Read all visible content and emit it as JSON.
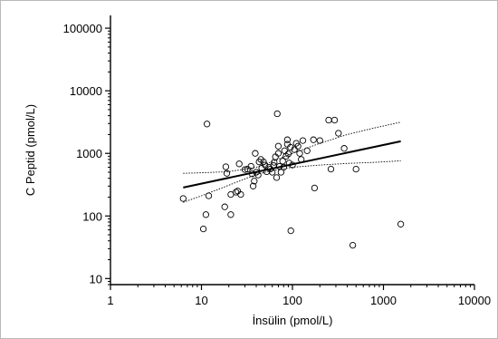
{
  "chart_data": {
    "type": "scatter",
    "x_scale": "log",
    "y_scale": "log",
    "xlabel": "İnsülin (pmol/L)",
    "ylabel": "C Peptid (pmol/L)",
    "xlim": [
      1,
      10000
    ],
    "ylim": [
      8,
      160000
    ],
    "x_ticks": [
      1,
      10,
      100,
      1000,
      10000
    ],
    "x_tick_labels": [
      "1",
      "10",
      "100",
      "1000",
      "10000"
    ],
    "y_ticks": [
      10,
      100,
      1000,
      10000,
      100000
    ],
    "y_tick_labels": [
      "10",
      "100",
      "1000",
      "10000",
      "100000"
    ],
    "grid": false,
    "legend": "none",
    "series": [
      {
        "values": [
          [
            6.3,
            190
          ],
          [
            10.5,
            62
          ],
          [
            11.2,
            105
          ],
          [
            12,
            210
          ],
          [
            11.5,
            2950
          ],
          [
            18,
            140
          ],
          [
            18.5,
            610
          ],
          [
            19,
            480
          ],
          [
            21,
            105
          ],
          [
            21,
            220
          ],
          [
            24,
            240
          ],
          [
            25,
            250
          ],
          [
            26,
            680
          ],
          [
            27,
            220
          ],
          [
            30,
            550
          ],
          [
            32,
            560
          ],
          [
            35,
            620
          ],
          [
            36,
            470
          ],
          [
            37,
            300
          ],
          [
            38,
            360
          ],
          [
            39,
            1000
          ],
          [
            40,
            500
          ],
          [
            42,
            450
          ],
          [
            43,
            730
          ],
          [
            45,
            800
          ],
          [
            46,
            580
          ],
          [
            48,
            730
          ],
          [
            50,
            650
          ],
          [
            52,
            510
          ],
          [
            55,
            600
          ],
          [
            57,
            560
          ],
          [
            60,
            500
          ],
          [
            62,
            640
          ],
          [
            63,
            720
          ],
          [
            65,
            880
          ],
          [
            67,
            410
          ],
          [
            68,
            4300
          ],
          [
            70,
            1000
          ],
          [
            70,
            1300
          ],
          [
            72,
            620
          ],
          [
            75,
            500
          ],
          [
            78,
            750
          ],
          [
            80,
            600
          ],
          [
            82,
            1100
          ],
          [
            85,
            900
          ],
          [
            88,
            1400
          ],
          [
            88,
            1650
          ],
          [
            90,
            980
          ],
          [
            92,
            700
          ],
          [
            95,
            1250
          ],
          [
            96,
            58
          ],
          [
            100,
            650
          ],
          [
            105,
            1150
          ],
          [
            110,
            1450
          ],
          [
            115,
            1300
          ],
          [
            120,
            1000
          ],
          [
            125,
            800
          ],
          [
            130,
            1600
          ],
          [
            145,
            1100
          ],
          [
            170,
            1650
          ],
          [
            175,
            280
          ],
          [
            200,
            1600
          ],
          [
            250,
            3400
          ],
          [
            265,
            560
          ],
          [
            290,
            3400
          ],
          [
            320,
            2100
          ],
          [
            370,
            1200
          ],
          [
            460,
            34
          ],
          [
            500,
            560
          ],
          [
            1550,
            74
          ]
        ]
      }
    ],
    "regression_line": {
      "x": [
        6.3,
        1550
      ],
      "y": [
        285,
        1560
      ]
    },
    "confidence_upper": {
      "x": [
        6.3,
        10,
        20,
        40,
        60,
        100,
        200,
        400,
        800,
        1550
      ],
      "y": [
        480,
        490,
        510,
        600,
        740,
        1000,
        1450,
        2000,
        2550,
        3150
      ]
    },
    "confidence_lower": {
      "x": [
        6.3,
        10,
        20,
        40,
        60,
        100,
        200,
        400,
        800,
        1550
      ],
      "y": [
        165,
        210,
        310,
        460,
        530,
        600,
        650,
        690,
        720,
        760
      ]
    }
  }
}
